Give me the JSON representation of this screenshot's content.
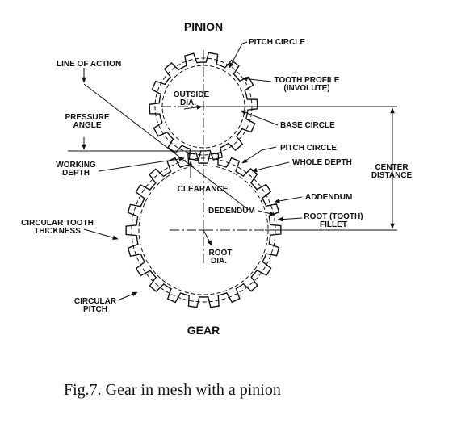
{
  "titles": {
    "pinion": "PINION",
    "gear": "GEAR"
  },
  "labels": {
    "pitch_circle_top": "PITCH CIRCLE",
    "line_of_action": "LINE OF ACTION",
    "tooth_profile_1": "TOOTH PROFILE",
    "tooth_profile_2": "(INVOLUTE)",
    "outside_dia_1": "OUTSIDE",
    "outside_dia_2": "DIA.",
    "pressure_angle_1": "PRESSURE",
    "pressure_angle_2": "ANGLE",
    "base_circle": "BASE CIRCLE",
    "pitch_circle_mid": "PITCH CIRCLE",
    "working_depth_1": "WORKING",
    "working_depth_2": "DEPTH",
    "whole_depth": "WHOLE DEPTH",
    "center_distance_1": "CENTER",
    "center_distance_2": "DISTANCE",
    "clearance": "CLEARANCE",
    "addendum": "ADDENDUM",
    "dedendum": "DEDENDUM",
    "root_fillet_1": "ROOT (TOOTH)",
    "root_fillet_2": "FILLET",
    "circular_tooth_thickness_1": "CIRCULAR TOOTH",
    "circular_tooth_thickness_2": "THICKNESS",
    "root_dia_1": "ROOT",
    "root_dia_2": "DIA.",
    "circular_pitch_1": "CIRCULAR",
    "circular_pitch_2": "PITCH"
  },
  "caption": "Fig.7. Gear in mesh with a pinion"
}
